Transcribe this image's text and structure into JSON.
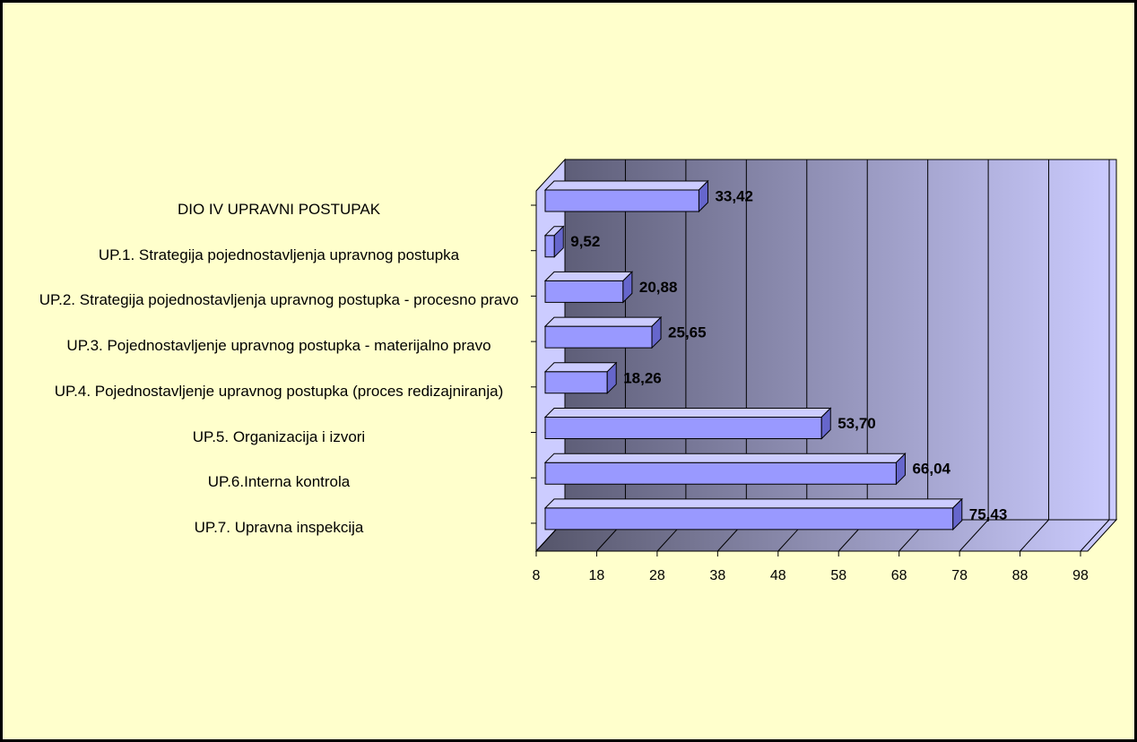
{
  "chart_data": {
    "type": "bar",
    "orientation": "horizontal",
    "categories": [
      "DIO IV UPRAVNI POSTUPAK",
      "UP.1. Strategija pojednostavljenja upravnog postupka",
      "UP.2. Strategija pojednostavljenja upravnog postupka - procesno pravo",
      "UP.3. Pojednostavljenje upravnog postupka - materijalno pravo",
      "UP.4. Pojednostavljenje upravnog postupka (proces redizajniranja)",
      "UP.5. Organizacija i izvori",
      "UP.6.Interna kontrola",
      "UP.7. Upravna inspekcija"
    ],
    "values": [
      33.42,
      9.52,
      20.88,
      25.65,
      18.26,
      53.7,
      66.04,
      75.43
    ],
    "value_labels": [
      "33,42",
      "9,52",
      "20,88",
      "25,65",
      "18,26",
      "53,70",
      "66,04",
      "75,43"
    ],
    "color": "#9999ff",
    "xlim": [
      8,
      98
    ],
    "xticks": [
      8,
      18,
      28,
      38,
      48,
      58,
      68,
      78,
      88,
      98
    ],
    "grid": true
  }
}
